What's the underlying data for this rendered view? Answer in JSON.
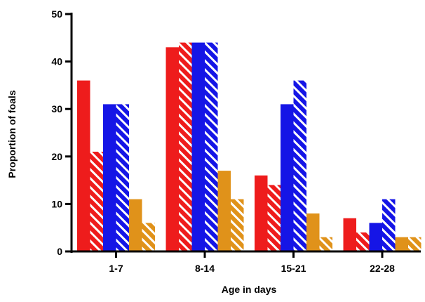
{
  "chart_data": {
    "type": "bar",
    "title": "",
    "xlabel": "Age in days",
    "ylabel": "Proportion of foals",
    "ylim": [
      0,
      50
    ],
    "yticks": [
      0,
      10,
      20,
      30,
      40,
      50
    ],
    "grid": false,
    "legend": "none",
    "categories": [
      "1-7",
      "8-14",
      "15-21",
      "22-28"
    ],
    "series": [
      {
        "color": "#ee1c1c",
        "pattern": "solid",
        "values": [
          36,
          43,
          16,
          7
        ]
      },
      {
        "color": "#ee1c1c",
        "pattern": "striped",
        "values": [
          21,
          44,
          14,
          4
        ]
      },
      {
        "color": "#1515e6",
        "pattern": "solid",
        "values": [
          31,
          44,
          31,
          6
        ]
      },
      {
        "color": "#1515e6",
        "pattern": "striped",
        "values": [
          31,
          44,
          36,
          11
        ]
      },
      {
        "color": "#e0921a",
        "pattern": "solid",
        "values": [
          11,
          17,
          8,
          3
        ]
      },
      {
        "color": "#e0921a",
        "pattern": "striped",
        "values": [
          6,
          11,
          3,
          3
        ]
      }
    ]
  }
}
